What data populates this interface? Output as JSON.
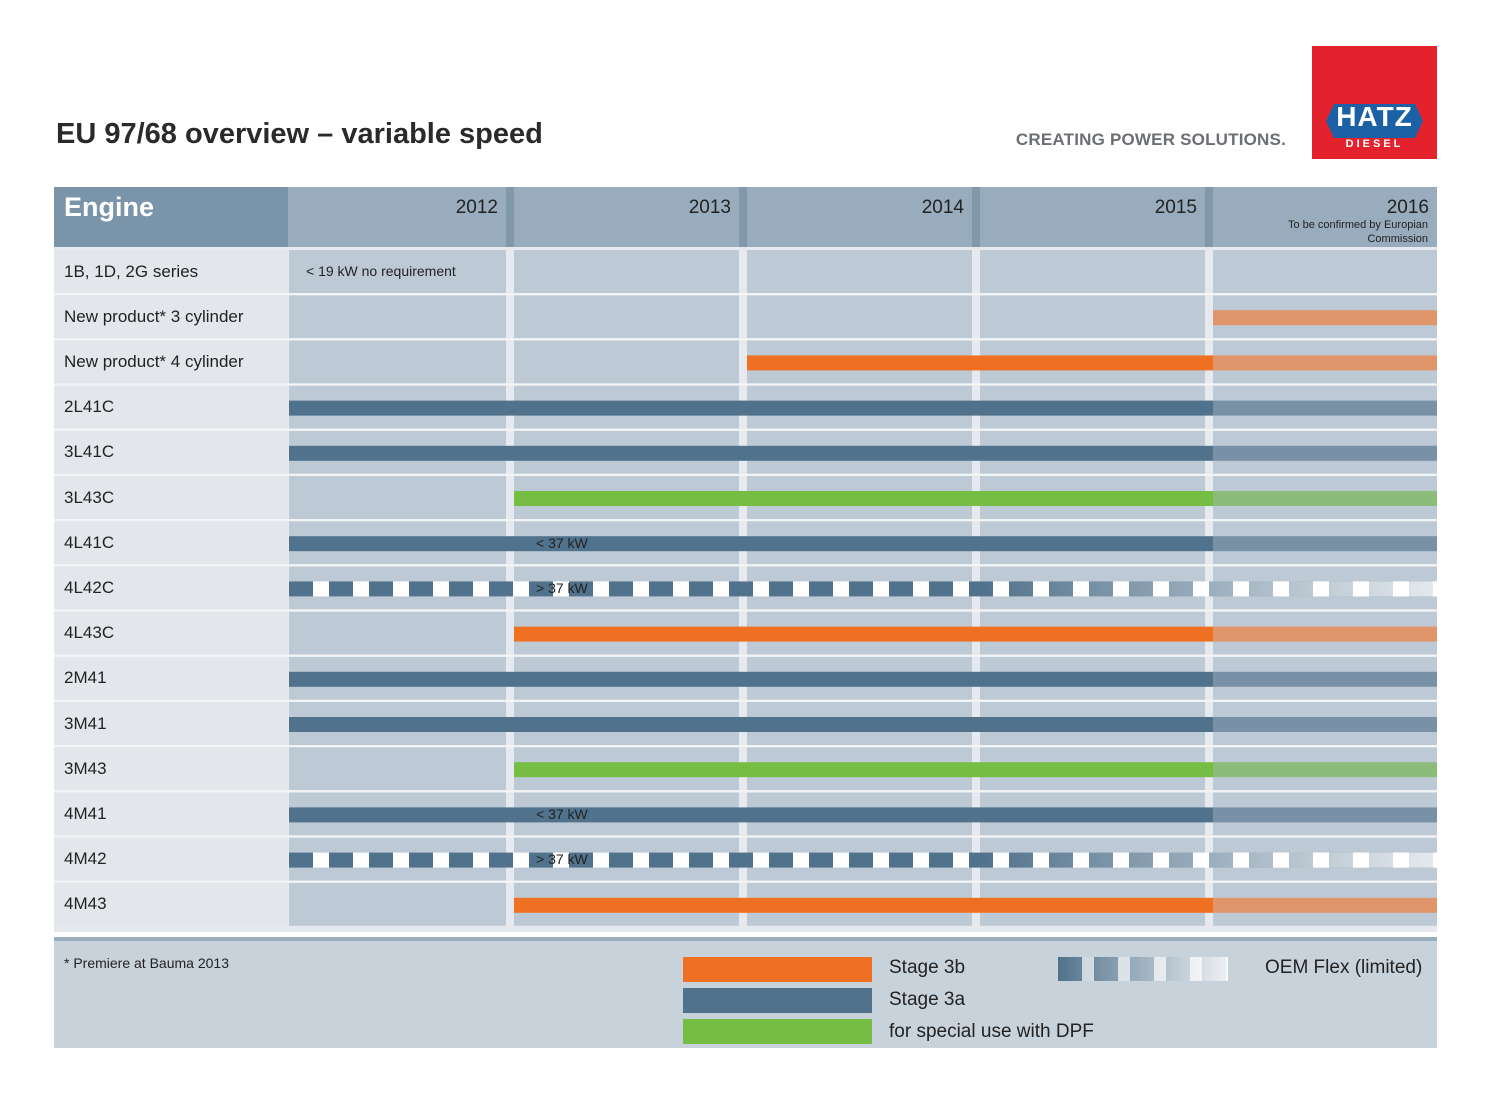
{
  "header": {
    "title": "EU 97/68 overview – variable speed",
    "tagline": "CREATING POWER SOLUTIONS.",
    "logo_text": "HATZ",
    "logo_subtext": "DIESEL"
  },
  "colors": {
    "stage_3b": "#f07023",
    "stage_3a": "#51728c",
    "dpf": "#76be43",
    "stage_3b_projected": "#e0956a",
    "stage_3a_projected": "#7891a6",
    "dpf_projected": "#8cbc7a",
    "header_bg": "#98acbd",
    "engine_header_bg": "#7a94a9",
    "cell_bg": "#bdcad5",
    "label_bg": "#e3e7eb"
  },
  "chart_data": {
    "type": "gantt",
    "title": "EU 97/68 overview – variable speed",
    "row_header": "Engine",
    "years": [
      "2012",
      "2013",
      "2014",
      "2015",
      "2016"
    ],
    "year_2016_note": "To be confirmed by Europian Commission",
    "x_range": [
      2012,
      2017
    ],
    "rows": [
      {
        "engine": "1B, 1D, 2G series",
        "note": "< 19 kW no requirement",
        "bars": []
      },
      {
        "engine": "New product* 3 cylinder",
        "bars": [
          {
            "stage": "3b",
            "start": 2016,
            "end": 2017
          }
        ]
      },
      {
        "engine": "New product* 4 cylinder",
        "bars": [
          {
            "stage": "3b",
            "start": 2014,
            "end": 2017
          }
        ]
      },
      {
        "engine": "2L41C",
        "bars": [
          {
            "stage": "3a",
            "start": 2012,
            "end": 2017
          }
        ]
      },
      {
        "engine": "3L41C",
        "bars": [
          {
            "stage": "3a",
            "start": 2012,
            "end": 2017
          }
        ]
      },
      {
        "engine": "3L43C",
        "bars": [
          {
            "stage": "dpf",
            "start": 2013,
            "end": 2017
          }
        ]
      },
      {
        "engine": "4L41C",
        "bars": [
          {
            "stage": "3a",
            "start": 2012,
            "end": 2013
          },
          {
            "stage": "3a",
            "start": 2013,
            "end": 2017,
            "label": "< 37 kW"
          }
        ]
      },
      {
        "engine": "4L42C",
        "bars": [
          {
            "stage": "oem",
            "start": 2012,
            "end": 2017,
            "label": "> 37 kW"
          }
        ]
      },
      {
        "engine": "4L43C",
        "bars": [
          {
            "stage": "3b",
            "start": 2013,
            "end": 2017
          }
        ]
      },
      {
        "engine": "2M41",
        "bars": [
          {
            "stage": "3a",
            "start": 2012,
            "end": 2017
          }
        ]
      },
      {
        "engine": "3M41",
        "bars": [
          {
            "stage": "3a",
            "start": 2012,
            "end": 2017
          }
        ]
      },
      {
        "engine": "3M43",
        "bars": [
          {
            "stage": "dpf",
            "start": 2013,
            "end": 2017
          }
        ]
      },
      {
        "engine": "4M41",
        "bars": [
          {
            "stage": "3a",
            "start": 2012,
            "end": 2013
          },
          {
            "stage": "3a",
            "start": 2013,
            "end": 2017,
            "label": "< 37 kW"
          }
        ]
      },
      {
        "engine": "4M42",
        "bars": [
          {
            "stage": "oem",
            "start": 2012,
            "end": 2017,
            "label": "> 37 kW"
          }
        ]
      },
      {
        "engine": "4M43",
        "bars": [
          {
            "stage": "3b",
            "start": 2013,
            "end": 2017
          }
        ]
      }
    ],
    "legend": [
      {
        "key": "3b",
        "label": "Stage 3b"
      },
      {
        "key": "3a",
        "label": "Stage 3a"
      },
      {
        "key": "dpf",
        "label": "for special use with DPF"
      },
      {
        "key": "oem",
        "label": "OEM Flex (limited)"
      }
    ],
    "footnote": "* Premiere at Bauma 2013"
  }
}
